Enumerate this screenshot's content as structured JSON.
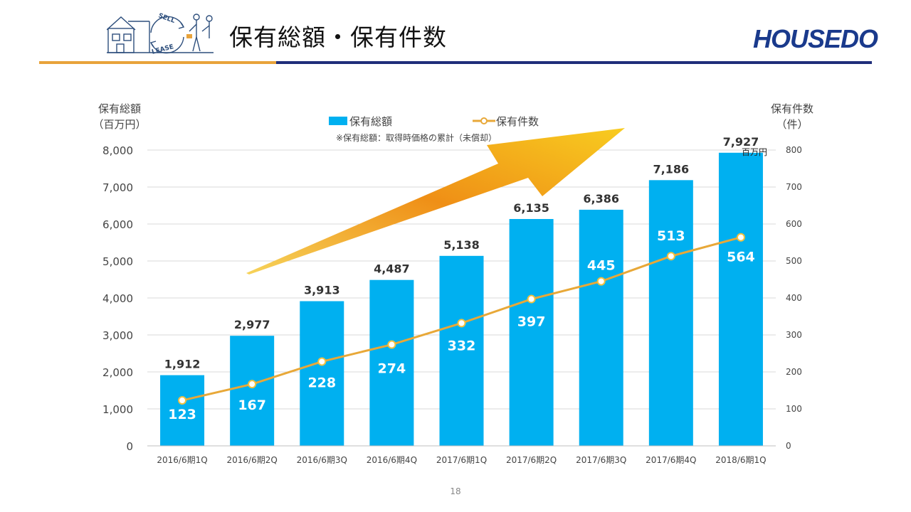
{
  "slide": {
    "title": "保有総額・保有件数",
    "brand_house": "HOUSE",
    "brand_do": "DO",
    "logo_sell": "SELL",
    "logo_lease": "LEASE",
    "page_number": "18"
  },
  "colors": {
    "bar": "#00b0f0",
    "line": "#e8a838",
    "arrow": "#f3a81f",
    "title_line_orange": "#e8a33b",
    "title_line_navy": "#1f2e7a",
    "brand": "#1a3a8c"
  },
  "chart_data": {
    "type": "bar",
    "categories": [
      "2016/6期1Q",
      "2016/6期2Q",
      "2016/6期3Q",
      "2016/6期4Q",
      "2017/6期1Q",
      "2017/6期2Q",
      "2017/6期3Q",
      "2017/6期4Q",
      "2018/6期1Q"
    ],
    "series": [
      {
        "name": "保有総額",
        "type": "bar",
        "axis": "left",
        "values": [
          1912,
          2977,
          3913,
          4487,
          5138,
          6135,
          6386,
          7186,
          7927
        ],
        "labels": [
          "1,912",
          "2,977",
          "3,913",
          "4,487",
          "5,138",
          "6,135",
          "6,386",
          "7,186",
          "7,927"
        ]
      },
      {
        "name": "保有件数",
        "type": "line",
        "axis": "right",
        "values": [
          123,
          167,
          228,
          274,
          332,
          397,
          445,
          513,
          564
        ],
        "labels": [
          "123",
          "167",
          "228",
          "274",
          "332",
          "397",
          "445",
          "513",
          "564"
        ]
      }
    ],
    "left_axis": {
      "label_line1": "保有総額",
      "label_line2": "（百万円）",
      "range": [
        0,
        8000
      ],
      "ticks": [
        "0",
        "1,000",
        "2,000",
        "3,000",
        "4,000",
        "5,000",
        "6,000",
        "7,000",
        "8,000"
      ]
    },
    "right_axis": {
      "label_line1": "保有件数",
      "label_line2": "（件）",
      "range": [
        0,
        800
      ],
      "ticks": [
        "0",
        "100",
        "200",
        "300",
        "400",
        "500",
        "600",
        "700",
        "800"
      ]
    },
    "note": "※保有総額：取得時価格の累計（未償却）",
    "unit_annotation": "百万円",
    "grid": true,
    "legend_position": "top-center"
  }
}
